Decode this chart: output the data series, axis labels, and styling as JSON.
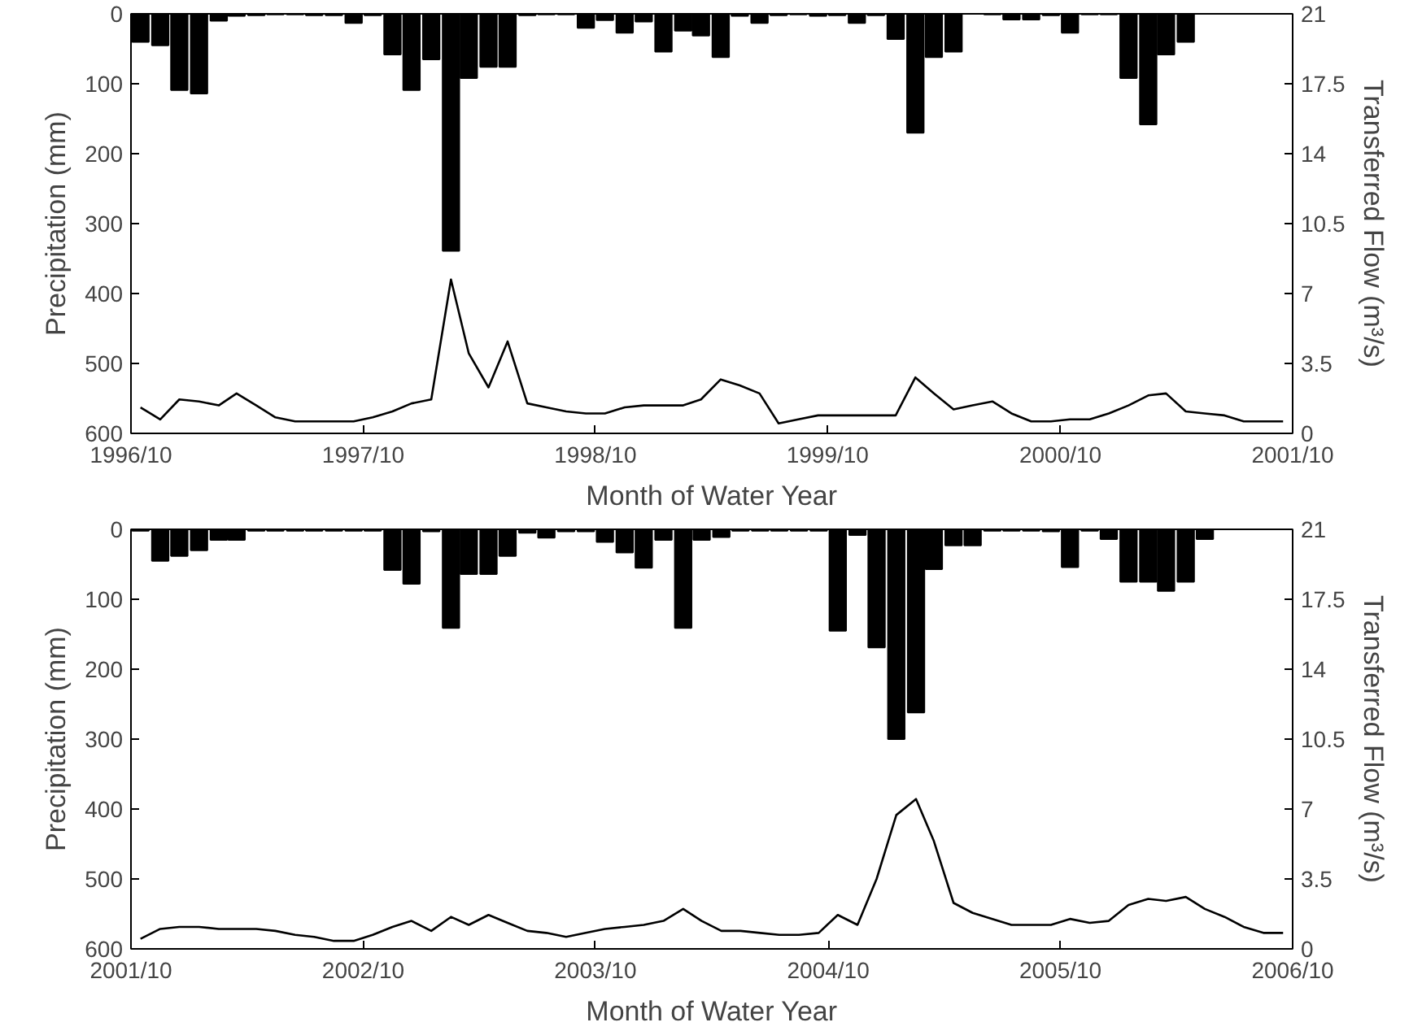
{
  "chart_data": [
    {
      "type": "bar",
      "xlabel": "Month of Water Year",
      "ylabel": "Precipitation (mm)",
      "y2label": "Transferred Flow (m³/s)",
      "x": [
        "1996-10-16",
        "1996-11-16",
        "1996-12-16",
        "1997-01-16",
        "1997-02-16",
        "1997-03-16",
        "1997-04-16",
        "1997-05-16",
        "1997-06-16",
        "1997-07-16",
        "1997-08-16",
        "1997-09-16",
        "1997-10-16",
        "1997-11-16",
        "1997-12-16",
        "1998-01-16",
        "1998-02-16",
        "1998-03-16",
        "1998-04-16",
        "1998-05-16",
        "1998-06-16",
        "1998-07-16",
        "1998-08-16",
        "1998-09-16",
        "1998-10-16",
        "1998-11-16",
        "1998-12-16",
        "1999-01-16",
        "1999-02-16",
        "1999-03-16",
        "1999-04-16",
        "1999-05-16",
        "1999-06-16",
        "1999-07-16",
        "1999-08-16",
        "1999-09-16",
        "1999-10-16",
        "1999-11-16",
        "1999-12-16",
        "2000-01-16",
        "2000-02-16",
        "2000-03-16",
        "2000-04-16",
        "2000-05-16",
        "2000-06-16",
        "2000-07-16",
        "2000-08-16",
        "2000-09-16",
        "2000-10-16",
        "2000-11-16",
        "2000-12-16",
        "2001-01-16",
        "2001-02-16",
        "2001-03-16",
        "2001-04-16",
        "2001-05-16",
        "2001-06-16",
        "2001-07-16",
        "2001-08-16",
        "2001-09-16"
      ],
      "series": [
        {
          "color": "#000000",
          "values": [
            40,
            45,
            109,
            114,
            10,
            3,
            2,
            1,
            1,
            2,
            2,
            13,
            2,
            58,
            109,
            65,
            339,
            92,
            76,
            76,
            2,
            1,
            1,
            20,
            9,
            27,
            11,
            54,
            24,
            31,
            62,
            3,
            13,
            2,
            1,
            3,
            2,
            13,
            2,
            36,
            170,
            62,
            54,
            0,
            1,
            8,
            8,
            2,
            27,
            1,
            1,
            92,
            158,
            58,
            40,
            0,
            0,
            0,
            0,
            0
          ]
        },
        {
          "type": "line",
          "axis": "y2",
          "color": "#000000",
          "values": [
            1.3,
            0.7,
            1.7,
            1.6,
            1.4,
            2.0,
            1.4,
            0.8,
            0.6,
            0.6,
            0.6,
            0.6,
            0.8,
            1.1,
            1.5,
            1.7,
            7.7,
            4.0,
            2.3,
            4.6,
            1.5,
            1.3,
            1.1,
            1.0,
            1.0,
            1.3,
            1.4,
            1.4,
            1.4,
            1.7,
            2.7,
            2.4,
            2.0,
            0.5,
            0.7,
            0.9,
            0.9,
            0.9,
            0.9,
            0.9,
            2.8,
            2.0,
            1.2,
            1.4,
            1.6,
            1.0,
            0.6,
            0.6,
            0.7,
            0.7,
            1.0,
            1.4,
            1.9,
            2.0,
            1.1,
            1.0,
            0.9,
            0.6,
            0.6,
            0.6
          ]
        }
      ],
      "xlim": [
        "1996-10",
        "2001-10"
      ],
      "xticks": [
        {
          "value": "1996-10",
          "label": "1996/10"
        },
        {
          "value": "1997-10",
          "label": "1997/10"
        },
        {
          "value": "1998-10",
          "label": "1998/10"
        },
        {
          "value": "1999-10",
          "label": "1999/10"
        },
        {
          "value": "2000-10",
          "label": "2000/10"
        },
        {
          "value": "2001-10",
          "label": "2001/10"
        }
      ],
      "ylim": [
        600,
        0
      ],
      "yticks": [
        0,
        100,
        200,
        300,
        400,
        500,
        600
      ],
      "y2lim": [
        0,
        21
      ],
      "y2ticks": [
        0,
        3.5,
        7,
        10.5,
        14,
        17.5,
        21
      ],
      "grid": false
    },
    {
      "type": "bar",
      "xlabel": "Month of Water Year",
      "ylabel": "Precipitation (mm)",
      "y2label": "Transferred Flow (m³/s)",
      "x": [
        "2001-10-16",
        "2001-11-16",
        "2001-12-16",
        "2002-01-16",
        "2002-02-16",
        "2002-03-16",
        "2002-04-16",
        "2002-05-16",
        "2002-06-16",
        "2002-07-16",
        "2002-08-16",
        "2002-09-16",
        "2002-10-16",
        "2002-11-16",
        "2002-12-16",
        "2003-01-16",
        "2003-02-16",
        "2003-03-16",
        "2003-04-16",
        "2003-05-16",
        "2003-06-16",
        "2003-07-16",
        "2003-08-16",
        "2003-09-16",
        "2003-10-16",
        "2003-11-16",
        "2003-12-16",
        "2004-01-16",
        "2004-02-16",
        "2004-03-16",
        "2004-04-16",
        "2004-05-16",
        "2004-06-16",
        "2004-07-16",
        "2004-08-16",
        "2004-09-16",
        "2004-10-16",
        "2004-11-16",
        "2004-12-16",
        "2005-01-16",
        "2005-02-16",
        "2005-03-16",
        "2005-04-16",
        "2005-05-16",
        "2005-06-16",
        "2005-07-16",
        "2005-08-16",
        "2005-09-16",
        "2005-10-16",
        "2005-11-16",
        "2005-12-16",
        "2006-01-16",
        "2006-02-16",
        "2006-03-16",
        "2006-04-16",
        "2006-05-16",
        "2006-06-16",
        "2006-07-16",
        "2006-08-16",
        "2006-09-16"
      ],
      "series": [
        {
          "color": "#000000",
          "values": [
            2,
            45,
            38,
            30,
            15,
            15,
            2,
            2,
            2,
            2,
            2,
            2,
            2,
            58,
            78,
            3,
            141,
            64,
            64,
            38,
            5,
            12,
            3,
            3,
            18,
            33,
            55,
            15,
            141,
            15,
            11,
            2,
            2,
            2,
            2,
            2,
            145,
            8,
            169,
            300,
            262,
            57,
            23,
            23,
            2,
            2,
            2,
            3,
            54,
            2,
            14,
            75,
            75,
            88,
            75,
            14,
            0,
            0,
            0,
            0
          ]
        },
        {
          "type": "line",
          "axis": "y2",
          "color": "#000000",
          "values": [
            0.5,
            1.0,
            1.1,
            1.1,
            1.0,
            1.0,
            1.0,
            0.9,
            0.7,
            0.6,
            0.4,
            0.4,
            0.7,
            1.1,
            1.4,
            0.9,
            1.6,
            1.2,
            1.7,
            1.3,
            0.9,
            0.8,
            0.6,
            0.8,
            1.0,
            1.1,
            1.2,
            1.4,
            2.0,
            1.4,
            0.9,
            0.9,
            0.8,
            0.7,
            0.7,
            0.8,
            1.7,
            1.2,
            3.5,
            6.7,
            7.5,
            5.4,
            2.3,
            1.8,
            1.5,
            1.2,
            1.2,
            1.2,
            1.5,
            1.3,
            1.4,
            2.2,
            2.5,
            2.4,
            2.6,
            2.0,
            1.6,
            1.1,
            0.8,
            0.8
          ]
        }
      ],
      "xlim": [
        "2001-10",
        "2006-10"
      ],
      "xticks": [
        {
          "value": "2001-10",
          "label": "2001/10"
        },
        {
          "value": "2002-10",
          "label": "2002/10"
        },
        {
          "value": "2003-10",
          "label": "2003/10"
        },
        {
          "value": "2004-10",
          "label": "2004/10"
        },
        {
          "value": "2005-10",
          "label": "2005/10"
        },
        {
          "value": "2006-10",
          "label": "2006/10"
        }
      ],
      "ylim": [
        600,
        0
      ],
      "yticks": [
        0,
        100,
        200,
        300,
        400,
        500,
        600
      ],
      "y2lim": [
        0,
        21
      ],
      "y2ticks": [
        0,
        3.5,
        7,
        10.5,
        14,
        17.5,
        21
      ],
      "grid": false
    }
  ]
}
